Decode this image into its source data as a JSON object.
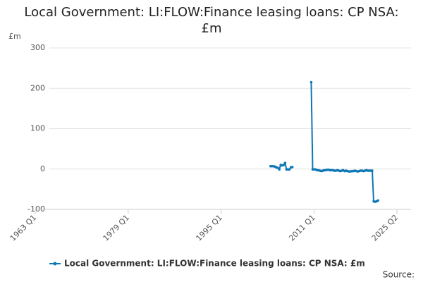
{
  "chart_data": {
    "type": "line",
    "title": "Local Government: LI:FLOW:Finance leasing loans: CP NSA: £m",
    "y_label": "£m",
    "source": "Source:",
    "x": [
      "2003 Q3",
      "2003 Q4",
      "2004 Q1",
      "2004 Q2",
      "2004 Q3",
      "2004 Q4",
      "2005 Q1",
      "2005 Q2",
      "2005 Q3",
      "2005 Q4",
      "2006 Q1",
      "2006 Q2",
      "2006 Q3",
      "2006 Q4",
      "2007 Q1",
      "2007 Q2",
      "2007 Q3",
      "2007 Q4",
      "2008 Q1",
      "2008 Q2",
      "2008 Q3",
      "2008 Q4",
      "2009 Q1",
      "2009 Q2",
      "2009 Q3",
      "2009 Q4",
      "2010 Q1",
      "2010 Q2",
      "2010 Q3",
      "2010 Q4",
      "2011 Q1",
      "2011 Q2",
      "2011 Q3",
      "2011 Q4",
      "2012 Q1",
      "2012 Q2",
      "2012 Q3",
      "2012 Q4",
      "2013 Q1",
      "2013 Q2",
      "2013 Q3",
      "2013 Q4",
      "2014 Q1",
      "2014 Q2",
      "2014 Q3",
      "2014 Q4",
      "2015 Q1",
      "2015 Q2",
      "2015 Q3",
      "2015 Q4",
      "2016 Q1",
      "2016 Q2",
      "2016 Q3",
      "2016 Q4",
      "2017 Q1",
      "2017 Q2",
      "2017 Q3",
      "2017 Q4",
      "2018 Q1",
      "2018 Q2",
      "2018 Q3",
      "2018 Q4",
      "2019 Q1",
      "2019 Q2",
      "2019 Q3",
      "2019 Q4",
      "2020 Q1",
      "2020 Q2",
      "2020 Q3",
      "2020 Q4",
      "2021 Q1",
      "2021 Q2",
      "2021 Q3",
      "2021 Q4",
      "2022 Q1"
    ],
    "series": [
      {
        "name": "Local Government: LI:FLOW:Finance leasing loans: CP NSA: £m",
        "color": "#0e77b6",
        "values": [
          7,
          7,
          7,
          6,
          4,
          3,
          -1,
          10,
          9,
          10,
          15,
          -1,
          -1,
          -1,
          4,
          5,
          null,
          null,
          null,
          null,
          null,
          null,
          null,
          null,
          null,
          null,
          null,
          null,
          215,
          -1,
          -1,
          -1,
          -3,
          -3,
          -4,
          -5,
          -4,
          -3,
          -3,
          -2,
          -2,
          -3,
          -3,
          -3,
          -4,
          -4,
          -3,
          -4,
          -5,
          -4,
          -3,
          -5,
          -4,
          -5,
          -6,
          -6,
          -5,
          -5,
          -4,
          -5,
          -6,
          -5,
          -4,
          -4,
          -5,
          -4,
          -3,
          -4,
          -4,
          -4,
          -4,
          -80,
          -81,
          -80,
          -78
        ]
      }
    ],
    "xlim": [
      "1963 Q1",
      "2025 Q2"
    ],
    "xticks": [
      "1963 Q1",
      "1979 Q1",
      "1995 Q1",
      "2011 Q1",
      "2025 Q2"
    ],
    "ylim": [
      -100,
      300
    ],
    "yticks": [
      -100,
      0,
      100,
      200,
      300
    ],
    "grid": true
  }
}
